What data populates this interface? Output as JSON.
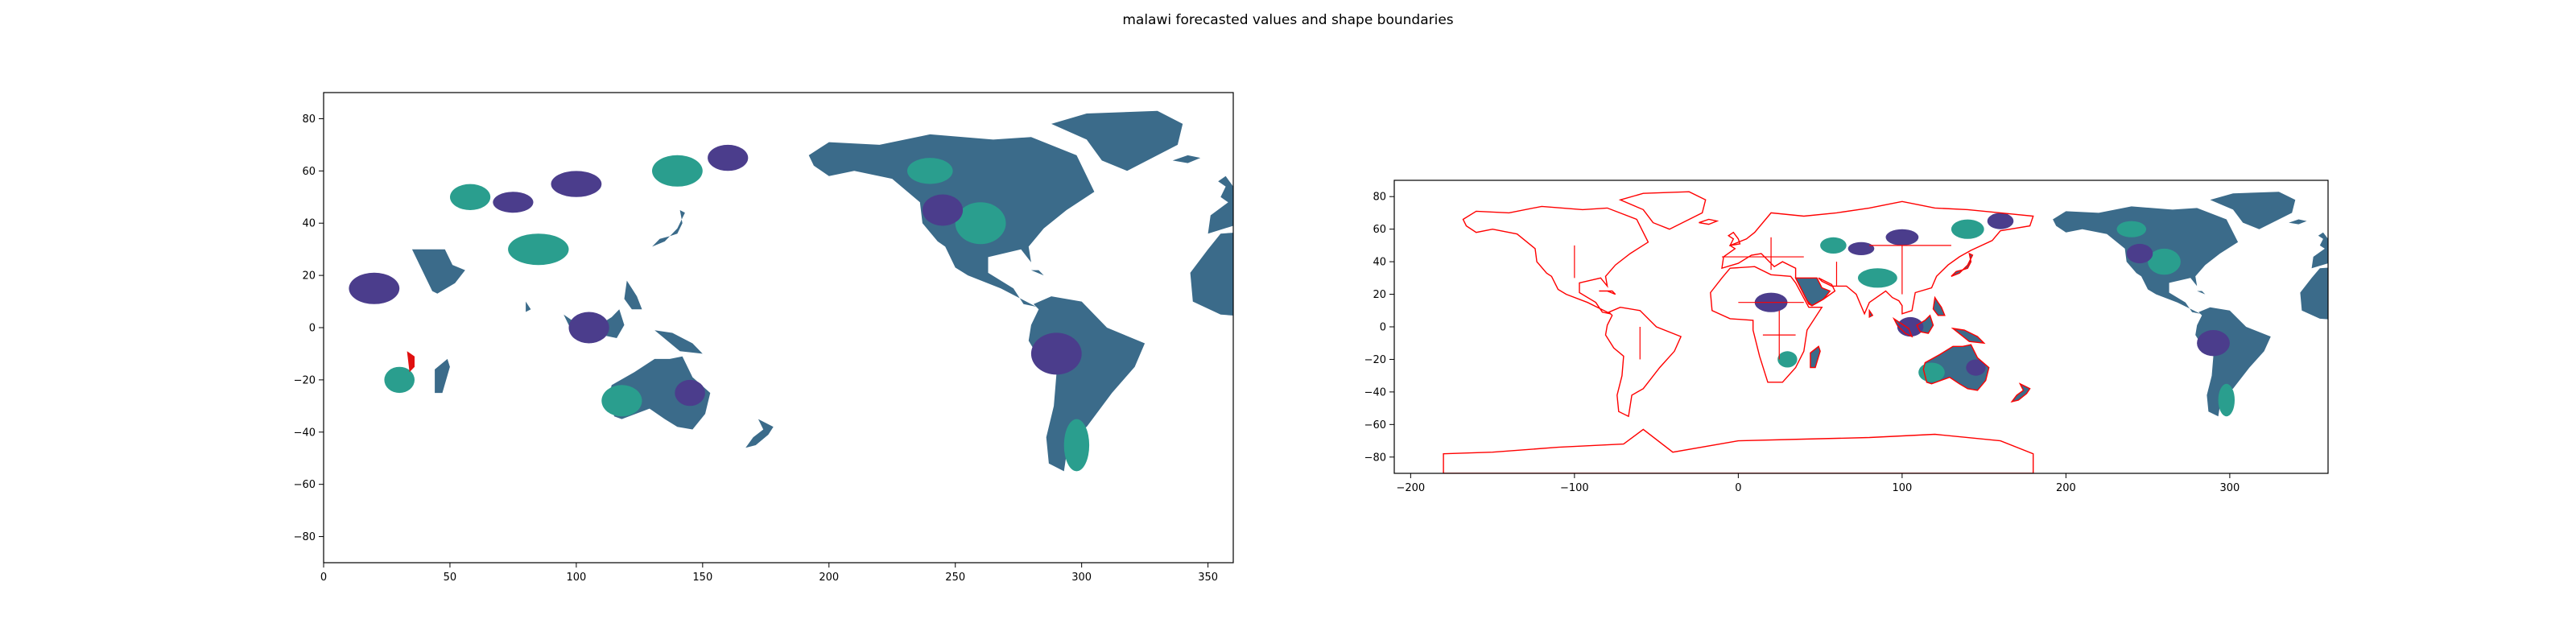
{
  "figure_title": "malawi forecasted values and shape boundaries",
  "colors": {
    "ocean": "#ffffff",
    "land_main": "#3b6b8a",
    "land_high": "#2a9e8e",
    "land_low": "#4b3d8c",
    "highlight": "#e01010",
    "boundary": "#ff0000",
    "axes": "#000000"
  },
  "chart_data": [
    {
      "type": "heatmap",
      "title": "",
      "xlabel": "",
      "ylabel": "",
      "xlim": [
        0,
        360
      ],
      "ylim": [
        -90,
        90
      ],
      "xticks": [
        "0",
        "50",
        "100",
        "150",
        "200",
        "250",
        "300",
        "350"
      ],
      "yticks": [
        "80",
        "60",
        "40",
        "20",
        "0",
        "−20",
        "−40",
        "−60",
        "−80"
      ],
      "xtick_values": [
        0,
        50,
        100,
        150,
        200,
        250,
        300,
        350
      ],
      "ytick_values": [
        80,
        60,
        40,
        20,
        0,
        -20,
        -40,
        -60,
        -80
      ],
      "description_layers": [
        "forecasted values (viridis)",
        "malawi highlighted in red"
      ],
      "highlight_region": {
        "name": "malawi",
        "lon_range": [
          33,
          36
        ],
        "lat_range": [
          -17,
          -9
        ]
      }
    },
    {
      "type": "heatmap",
      "title": "",
      "xlabel": "",
      "ylabel": "",
      "xlim": [
        -210,
        360
      ],
      "ylim": [
        -90,
        90
      ],
      "xticks": [
        "−200",
        "−100",
        "0",
        "100",
        "200",
        "300"
      ],
      "yticks": [
        "80",
        "60",
        "40",
        "20",
        "0",
        "−20",
        "−40",
        "−60",
        "−80"
      ],
      "xtick_values": [
        -200,
        -100,
        0,
        100,
        200,
        300
      ],
      "ytick_values": [
        80,
        60,
        40,
        20,
        0,
        -20,
        -40,
        -60,
        -80
      ],
      "description_layers": [
        "forecasted values (viridis, 0–360 grid)",
        "country shape boundaries (red outlines, −180–180)"
      ]
    }
  ]
}
